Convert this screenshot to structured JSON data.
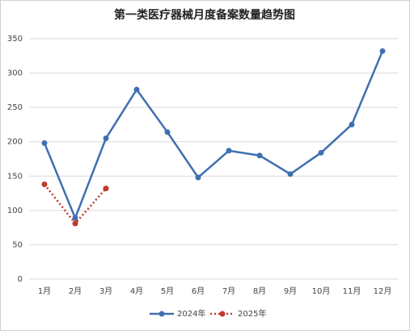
{
  "chart_data": {
    "type": "line",
    "title": "第一类医疗器械月度备案数量趋势图",
    "categories": [
      "1月",
      "2月",
      "3月",
      "4月",
      "5月",
      "6月",
      "7月",
      "8月",
      "9月",
      "10月",
      "11月",
      "12月"
    ],
    "series": [
      {
        "name": "2024年",
        "color": "#3f6fb0",
        "dash": "solid",
        "values": [
          198,
          89,
          205,
          276,
          214,
          148,
          187,
          180,
          153,
          184,
          225,
          332
        ]
      },
      {
        "name": "2025年",
        "color": "#c0392b",
        "dash": "dotted",
        "values": [
          138,
          81,
          132,
          null,
          null,
          null,
          null,
          null,
          null,
          null,
          null,
          null
        ]
      }
    ],
    "ylim": [
      0,
      350
    ],
    "yticks": [
      0,
      50,
      100,
      150,
      200,
      250,
      300,
      350
    ],
    "grid": true,
    "legend": "bottom"
  }
}
